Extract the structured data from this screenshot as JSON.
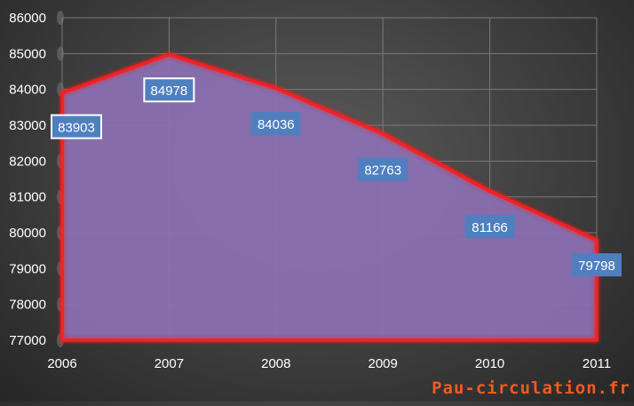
{
  "chart_data": {
    "type": "area",
    "x": [
      "2006",
      "2007",
      "2008",
      "2009",
      "2010",
      "2011"
    ],
    "values": [
      83903,
      84978,
      84036,
      82763,
      81166,
      79798
    ],
    "data_labels": [
      "83903",
      "84978",
      "84036",
      "82763",
      "81166",
      "79798"
    ],
    "y_ticks": [
      "77000",
      "78000",
      "79000",
      "80000",
      "81000",
      "82000",
      "83000",
      "84000",
      "85000",
      "86000"
    ],
    "ylim": [
      77000,
      86000
    ],
    "title": "",
    "xlabel": "",
    "ylabel": "",
    "grid": true,
    "legend": "none",
    "colors": {
      "fill": "#8a6fb0",
      "line": "#ff1a1a",
      "label_bg": "#4f7fbf",
      "grid": "#7a7a7a",
      "axis_text": "#ffffff"
    }
  },
  "watermark": "Pau-circulation.fr"
}
